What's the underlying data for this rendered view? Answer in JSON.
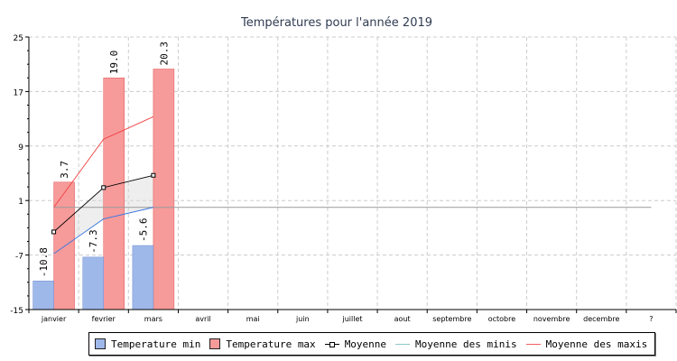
{
  "chart_data": {
    "type": "bar",
    "title": "Températures pour l'année 2019",
    "categories": [
      "janvier",
      "fevrier",
      "mars",
      "avril",
      "mai",
      "juin",
      "juillet",
      "aout",
      "septembre",
      "octobre",
      "novembre",
      "decembre",
      "?"
    ],
    "ylim": [
      -15,
      25
    ],
    "yticks": [
      -15,
      -7,
      1,
      9,
      17,
      25
    ],
    "grid": true,
    "legend_position": "bottom",
    "series": [
      {
        "name": "Temperature min",
        "type": "bar",
        "color": "#9fb8ea",
        "values": [
          -10.8,
          -7.3,
          -5.6,
          null,
          null,
          null,
          null,
          null,
          null,
          null,
          null,
          null,
          null
        ],
        "labels": [
          "-10.8",
          "-7.3",
          "-5.6"
        ]
      },
      {
        "name": "Temperature max",
        "type": "bar",
        "color": "#f79a9a",
        "values": [
          3.7,
          19.0,
          20.3,
          null,
          null,
          null,
          null,
          null,
          null,
          null,
          null,
          null,
          null
        ],
        "labels": [
          "3.7",
          "19.0",
          "20.3"
        ]
      },
      {
        "name": "Moyenne",
        "type": "line",
        "color": "#000000",
        "marker": "square",
        "values": [
          -3.6,
          2.9,
          4.7,
          null,
          null,
          null,
          null,
          null,
          null,
          null,
          null,
          null,
          null
        ]
      },
      {
        "name": "Moyenne des minis",
        "type": "line",
        "color": "#3a78e0",
        "values": [
          -6.8,
          -1.7,
          0.0,
          null,
          null,
          null,
          null,
          null,
          null,
          null,
          null,
          null,
          null
        ]
      },
      {
        "name": "Moyenne des maxis",
        "type": "line",
        "color": "#f04040",
        "values": [
          0.0,
          10.0,
          13.3,
          null,
          null,
          null,
          null,
          null,
          null,
          null,
          null,
          null,
          null
        ]
      }
    ],
    "reference_line": {
      "value": 0.0,
      "color": "#999999"
    }
  }
}
